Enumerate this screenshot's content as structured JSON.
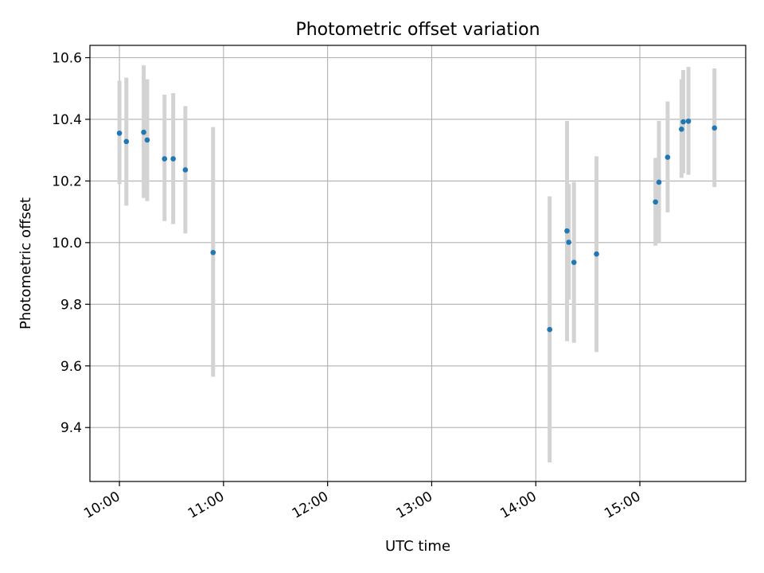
{
  "chart_data": {
    "type": "scatter",
    "title": "Photometric offset variation",
    "xlabel": "UTC time",
    "ylabel": "Photometric offset",
    "grid": true,
    "x_tick_labels": [
      "10:00",
      "11:00",
      "12:00",
      "13:00",
      "14:00",
      "15:00"
    ],
    "x_tick_values": [
      "10:00",
      "11:00",
      "12:00",
      "13:00",
      "14:00",
      "15:00"
    ],
    "xlim": [
      "09:43",
      "16:01"
    ],
    "y_ticks": [
      9.4,
      9.6,
      9.8,
      10.0,
      10.2,
      10.4,
      10.6
    ],
    "y_tick_labels": [
      "9.4",
      "9.6",
      "9.8",
      "10.0",
      "10.2",
      "10.4",
      "10.6"
    ],
    "ylim": [
      9.225,
      10.64
    ],
    "colors": {
      "points": "#1f77b4",
      "errorbars": "#d3d3d3",
      "grid": "#b0b0b0"
    },
    "points": [
      {
        "x": "10:00",
        "y": 10.355,
        "err_low": 10.19,
        "err_high": 10.525
      },
      {
        "x": "10:04",
        "y": 10.328,
        "err_low": 10.12,
        "err_high": 10.535
      },
      {
        "x": "10:14",
        "y": 10.358,
        "err_low": 10.145,
        "err_high": 10.575
      },
      {
        "x": "10:16",
        "y": 10.333,
        "err_low": 10.135,
        "err_high": 10.53
      },
      {
        "x": "10:26",
        "y": 10.272,
        "err_low": 10.07,
        "err_high": 10.48
      },
      {
        "x": "10:31",
        "y": 10.272,
        "err_low": 10.06,
        "err_high": 10.485
      },
      {
        "x": "10:38",
        "y": 10.236,
        "err_low": 10.03,
        "err_high": 10.443
      },
      {
        "x": "10:54",
        "y": 9.968,
        "err_low": 9.565,
        "err_high": 10.375
      },
      {
        "x": "14:08",
        "y": 9.718,
        "err_low": 9.287,
        "err_high": 10.15
      },
      {
        "x": "14:18",
        "y": 10.038,
        "err_low": 9.68,
        "err_high": 10.395
      },
      {
        "x": "14:19",
        "y": 10.001,
        "err_low": 9.815,
        "err_high": 10.19
      },
      {
        "x": "14:22",
        "y": 9.936,
        "err_low": 9.675,
        "err_high": 10.197
      },
      {
        "x": "14:35",
        "y": 9.963,
        "err_low": 9.645,
        "err_high": 10.28
      },
      {
        "x": "15:09",
        "y": 10.132,
        "err_low": 9.99,
        "err_high": 10.275
      },
      {
        "x": "15:11",
        "y": 10.196,
        "err_low": 10.0,
        "err_high": 10.395
      },
      {
        "x": "15:16",
        "y": 10.277,
        "err_low": 10.098,
        "err_high": 10.458
      },
      {
        "x": "15:24",
        "y": 10.368,
        "err_low": 10.21,
        "err_high": 10.53
      },
      {
        "x": "15:25",
        "y": 10.392,
        "err_low": 10.225,
        "err_high": 10.56
      },
      {
        "x": "15:28",
        "y": 10.394,
        "err_low": 10.22,
        "err_high": 10.57
      },
      {
        "x": "15:43",
        "y": 10.372,
        "err_low": 10.18,
        "err_high": 10.565
      }
    ]
  }
}
